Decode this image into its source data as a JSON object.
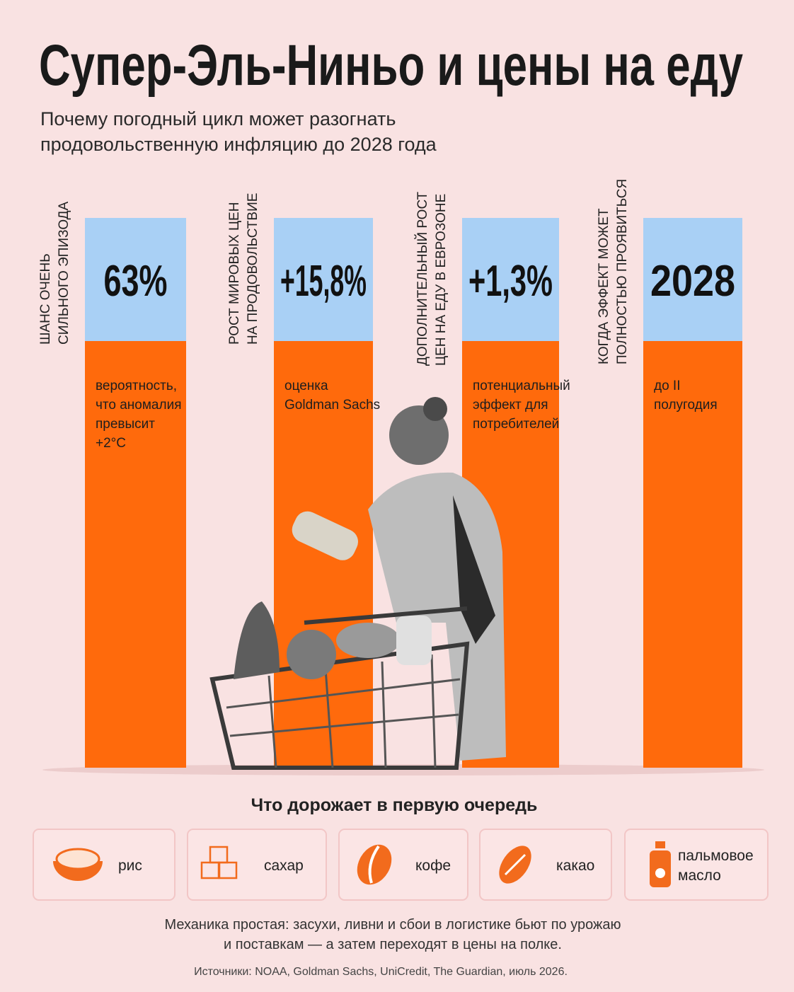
{
  "header": {
    "title": "Супер-Эль-Ниньо и цены на еду",
    "subtitle": [
      "Почему погодный цикл может разогнать",
      "продовольственную инфляцию до 2028 года"
    ]
  },
  "columns": [
    {
      "label": [
        "ШАНС ОЧЕНЬ",
        "СИЛЬНОГО ЭПИЗОДА"
      ],
      "value": "63%",
      "description": [
        "вероятность,",
        "что аномалия",
        "превысит",
        "+2°C"
      ]
    },
    {
      "label": [
        "РОСТ МИРОВЫХ ЦЕН",
        "НА ПРОДОВОЛЬСТВИЕ"
      ],
      "value": "+15,8%",
      "description": [
        "оценка",
        "Goldman Sachs"
      ]
    },
    {
      "label": [
        "ДОПОЛНИТЕЛЬНЫЙ РОСТ",
        "ЦЕН НА ЕДУ В ЕВРОЗОНЕ"
      ],
      "value": "+1,3%",
      "description": [
        "потенциальный",
        "эффект для",
        "потребителей"
      ]
    },
    {
      "label": [
        "КОГДА ЭФФЕКТ МОЖЕТ",
        "ПОЛНОСТЬЮ ПРОЯВИТЬСЯ"
      ],
      "value": "2028",
      "description": [
        "до II",
        "полугодия"
      ]
    }
  ],
  "section": {
    "title": "Что дорожает в первую очередь",
    "items": [
      {
        "label": [
          "рис"
        ]
      },
      {
        "label": [
          "сахар"
        ]
      },
      {
        "label": [
          "кофе"
        ]
      },
      {
        "label": [
          "какао"
        ]
      },
      {
        "label": [
          "пальмовое",
          "масло"
        ]
      }
    ]
  },
  "footer": {
    "text": [
      "Механика простая: засухи, ливни и сбои в логистике бьют по урожаю",
      "и поставкам — а затем переходят в цены на полке."
    ],
    "sources": "Источники: NOAA, Goldman Sachs, UniCredit, The Guardian, июль 2026."
  }
}
